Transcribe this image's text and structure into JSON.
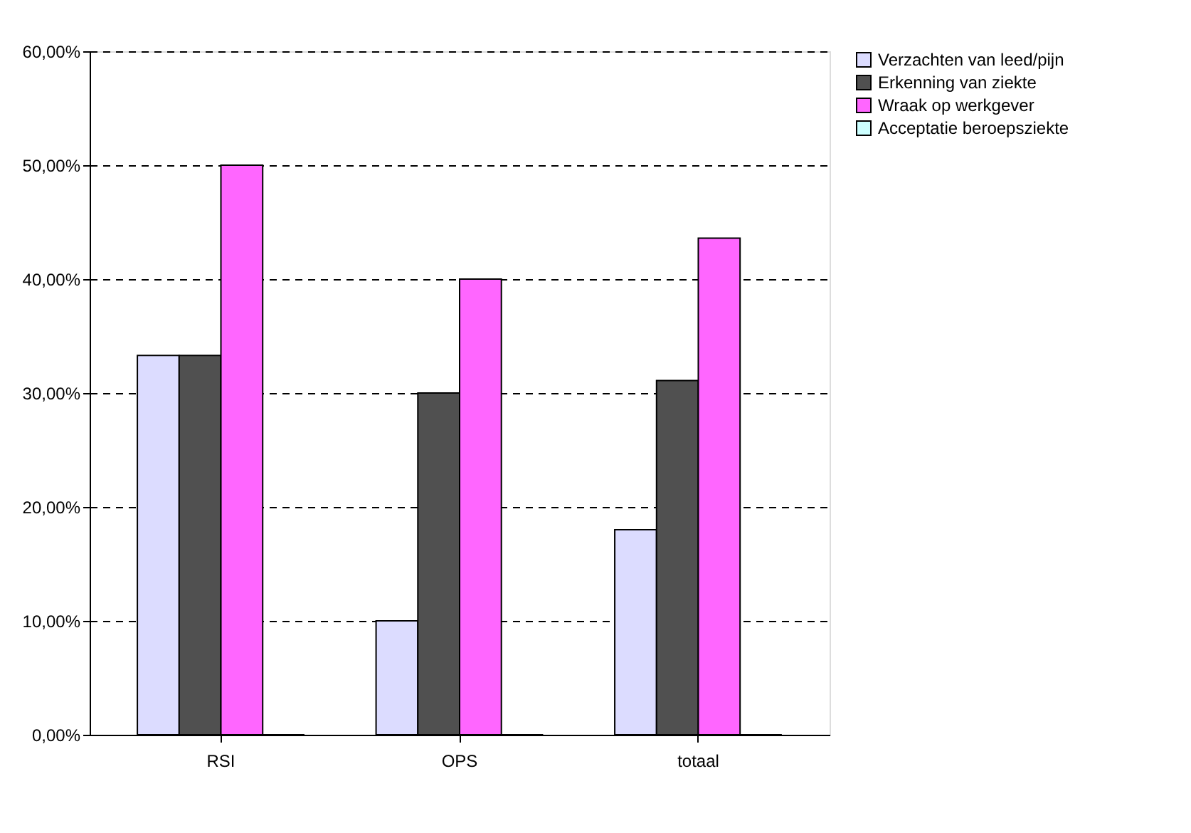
{
  "chart_data": {
    "type": "bar",
    "categories": [
      "RSI",
      "OPS",
      "totaal"
    ],
    "series": [
      {
        "name": "Verzachten van leed/pijn",
        "color": "#dcdcff",
        "values": [
          33.3,
          10,
          18
        ]
      },
      {
        "name": "Erkenning van ziekte",
        "color": "#505050",
        "values": [
          33.3,
          30,
          31.1
        ]
      },
      {
        "name": "Wraak op werkgever",
        "color": "#ff66ff",
        "values": [
          50,
          40,
          43.6
        ]
      },
      {
        "name": "Acceptatie beroepsziekte",
        "color": "#ccffff",
        "values": [
          0,
          0,
          0
        ]
      }
    ],
    "ylim": [
      0,
      60
    ],
    "yticks": [
      {
        "value": 0,
        "label": "0,00%"
      },
      {
        "value": 10,
        "label": "10,00%"
      },
      {
        "value": 20,
        "label": "20,00%"
      },
      {
        "value": 30,
        "label": "30,00%"
      },
      {
        "value": 40,
        "label": "40,00%"
      },
      {
        "value": 50,
        "label": "50,00%"
      },
      {
        "value": 60,
        "label": "60,00%"
      }
    ],
    "grid": "y",
    "legend": "right"
  }
}
